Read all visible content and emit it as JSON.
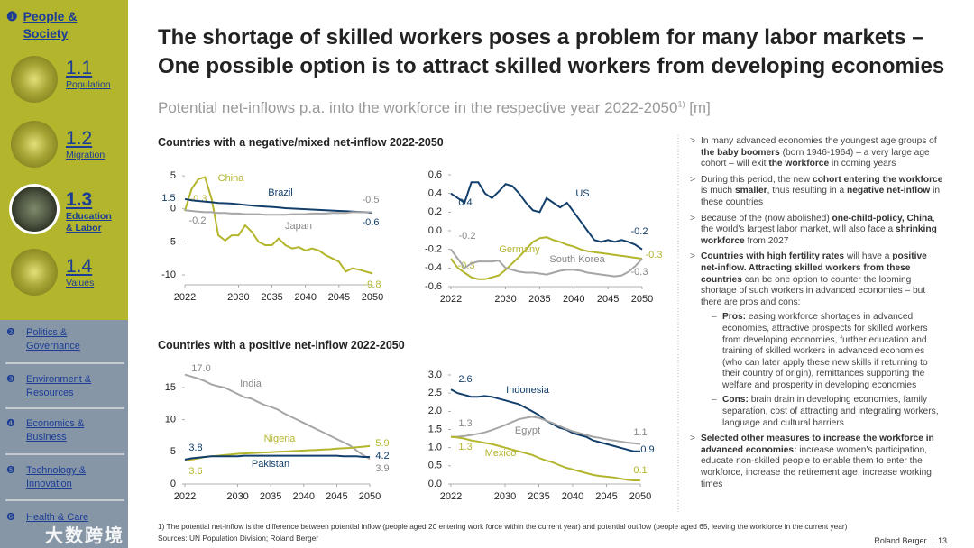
{
  "sidebar": {
    "active": {
      "num": "❶",
      "label": "People & Society"
    },
    "subitems": [
      {
        "num": "1.1",
        "label": "Population"
      },
      {
        "num": "1.2",
        "label": "Migration"
      },
      {
        "num": "1.3",
        "label": "Education & Labor"
      },
      {
        "num": "1.4",
        "label": "Values"
      }
    ],
    "sections": [
      {
        "num": "❷",
        "label": "Politics & Governance"
      },
      {
        "num": "❸",
        "label": "Environment & Resources"
      },
      {
        "num": "❹",
        "label": "Economics & Business"
      },
      {
        "num": "❺",
        "label": "Technology & Innovation"
      },
      {
        "num": "❻",
        "label": "Health & Care"
      }
    ],
    "watermark": "大数跨境"
  },
  "title": [
    "The shortage of skilled workers poses a problem for many labor markets –",
    "One possible option is to attract skilled workers from developing economies"
  ],
  "subtitle": {
    "text": "Potential net-inflows p.a. into the workforce in the respective year 2022-2050",
    "sup": "1)",
    "unit": "[m]"
  },
  "section_titles": [
    "Countries with a negative/mixed net-inflow 2022-2050",
    "Countries with a positive net-inflow 2022-2050"
  ],
  "chart_data": [
    {
      "type": "line",
      "x": [
        2022,
        2023,
        2024,
        2025,
        2026,
        2027,
        2028,
        2029,
        2030,
        2031,
        2032,
        2033,
        2034,
        2035,
        2036,
        2037,
        2038,
        2039,
        2040,
        2041,
        2042,
        2043,
        2044,
        2045,
        2046,
        2047,
        2048,
        2049,
        2050
      ],
      "xlim": [
        2022,
        2050
      ],
      "xticks": [
        2022,
        2030,
        2035,
        2040,
        2045,
        2050
      ],
      "ylim": [
        -11.5,
        5.7
      ],
      "yticks": [
        5,
        0,
        -5,
        -10
      ],
      "series": [
        {
          "name": "China",
          "color": "#b3b52c",
          "values": [
            -0.3,
            3,
            4.5,
            4.8,
            1.5,
            -4,
            -4.8,
            -4,
            -4,
            -2.5,
            -3.5,
            -5,
            -5.5,
            -5.5,
            -4.5,
            -5.5,
            -6,
            -5.8,
            -6.3,
            -6,
            -6.3,
            -7,
            -7.5,
            -8,
            -9.5,
            -9,
            -9.2,
            -9.5,
            -9.8
          ]
        },
        {
          "name": "Brazil",
          "color": "#123f6b",
          "values": [
            1.5,
            1.3,
            1.2,
            1.1,
            1.0,
            0.9,
            0.85,
            0.8,
            0.7,
            0.6,
            0.5,
            0.4,
            0.35,
            0.3,
            0.2,
            0.1,
            0.05,
            0,
            -0.05,
            -0.1,
            -0.15,
            -0.2,
            -0.25,
            -0.3,
            -0.35,
            -0.4,
            -0.45,
            -0.5,
            -0.6
          ]
        },
        {
          "name": "Japan",
          "color": "#a6a6a6",
          "values": [
            -0.2,
            -0.3,
            -0.4,
            -0.5,
            -0.5,
            -0.6,
            -0.6,
            -0.7,
            -0.7,
            -0.8,
            -0.8,
            -0.8,
            -0.9,
            -0.9,
            -0.9,
            -0.9,
            -0.8,
            -0.8,
            -0.8,
            -0.7,
            -0.7,
            -0.7,
            -0.6,
            -0.6,
            -0.6,
            -0.5,
            -0.5,
            -0.5,
            -0.5
          ]
        }
      ]
    },
    {
      "type": "line",
      "x": [
        2022,
        2023,
        2024,
        2025,
        2026,
        2027,
        2028,
        2029,
        2030,
        2031,
        2032,
        2033,
        2034,
        2035,
        2036,
        2037,
        2038,
        2039,
        2040,
        2041,
        2042,
        2043,
        2044,
        2045,
        2046,
        2047,
        2048,
        2049,
        2050
      ],
      "xlim": [
        2022,
        2050
      ],
      "xticks": [
        2022,
        2030,
        2035,
        2040,
        2045,
        2050
      ],
      "ylim": [
        -0.6,
        0.6
      ],
      "yticks": [
        0.6,
        0.4,
        0.2,
        {
          "value": 0,
          "label": "0.0"
        },
        -0.2,
        -0.4,
        -0.6
      ],
      "series": [
        {
          "name": "US",
          "color": "#123f6b",
          "values": [
            0.4,
            0.35,
            0.3,
            0.52,
            0.52,
            0.4,
            0.35,
            0.42,
            0.5,
            0.48,
            0.4,
            0.3,
            0.22,
            0.2,
            0.35,
            0.3,
            0.25,
            0.3,
            0.2,
            0.1,
            0.0,
            -0.1,
            -0.12,
            -0.1,
            -0.12,
            -0.1,
            -0.12,
            -0.15,
            -0.2
          ]
        },
        {
          "name": "Germany",
          "color": "#b3b52c",
          "values": [
            -0.3,
            -0.4,
            -0.45,
            -0.5,
            -0.52,
            -0.52,
            -0.5,
            -0.48,
            -0.42,
            -0.35,
            -0.28,
            -0.2,
            -0.12,
            -0.08,
            -0.07,
            -0.1,
            -0.12,
            -0.15,
            -0.17,
            -0.2,
            -0.22,
            -0.23,
            -0.24,
            -0.25,
            -0.26,
            -0.27,
            -0.28,
            -0.29,
            -0.3
          ]
        },
        {
          "name": "South Korea",
          "color": "#a6a6a6",
          "values": [
            -0.2,
            -0.3,
            -0.4,
            -0.35,
            -0.33,
            -0.33,
            -0.33,
            -0.32,
            -0.4,
            -0.42,
            -0.44,
            -0.45,
            -0.45,
            -0.46,
            -0.47,
            -0.45,
            -0.43,
            -0.42,
            -0.42,
            -0.43,
            -0.45,
            -0.46,
            -0.47,
            -0.48,
            -0.49,
            -0.48,
            -0.44,
            -0.38,
            -0.3
          ]
        }
      ]
    },
    {
      "type": "line",
      "x": [
        2022,
        2023,
        2024,
        2025,
        2026,
        2027,
        2028,
        2029,
        2030,
        2031,
        2032,
        2033,
        2034,
        2035,
        2036,
        2037,
        2038,
        2039,
        2040,
        2041,
        2042,
        2043,
        2044,
        2045,
        2046,
        2047,
        2048,
        2049,
        2050
      ],
      "xlim": [
        2022,
        2050
      ],
      "xticks": [
        2022,
        2030,
        2035,
        2040,
        2045,
        2050
      ],
      "ylim": [
        0,
        18.5
      ],
      "yticks": [
        15,
        10,
        5,
        0
      ],
      "series": [
        {
          "name": "India",
          "color": "#a6a6a6",
          "values": [
            17,
            16.7,
            16.4,
            16,
            15.5,
            15.2,
            15,
            14.5,
            14,
            13.5,
            13.3,
            12.8,
            12.3,
            12,
            11.6,
            11,
            10.5,
            10,
            9.5,
            9,
            8.5,
            8,
            7.5,
            7,
            6.5,
            6,
            5.2,
            4.5,
            3.9
          ],
          "value_labels": [
            "17.0",
            null,
            null,
            null,
            null,
            null,
            null,
            null,
            null,
            null,
            null,
            null,
            null,
            null,
            null,
            null,
            null,
            null,
            null,
            null,
            null,
            null,
            null,
            null,
            null,
            null,
            null,
            null,
            null
          ]
        },
        {
          "name": "Nigeria",
          "color": "#b3b52c",
          "values": [
            3.6,
            3.8,
            4.0,
            4.2,
            4.3,
            4.4,
            4.5,
            4.6,
            4.7,
            4.75,
            4.8,
            4.85,
            4.9,
            4.95,
            5.0,
            5.05,
            5.1,
            5.15,
            5.2,
            5.25,
            5.3,
            5.35,
            5.4,
            5.5,
            5.55,
            5.6,
            5.7,
            5.8,
            5.9
          ]
        },
        {
          "name": "Pakistan",
          "color": "#123f6b",
          "values": [
            3.8,
            4.0,
            4.1,
            4.2,
            4.3,
            4.3,
            4.3,
            4.3,
            4.3,
            4.4,
            4.4,
            4.4,
            4.4,
            4.4,
            4.4,
            4.4,
            4.4,
            4.4,
            4.4,
            4.4,
            4.4,
            4.4,
            4.4,
            4.4,
            4.3,
            4.3,
            4.3,
            4.2,
            4.2
          ]
        }
      ]
    },
    {
      "type": "line",
      "x": [
        2022,
        2023,
        2024,
        2025,
        2026,
        2027,
        2028,
        2029,
        2030,
        2031,
        2032,
        2033,
        2034,
        2035,
        2036,
        2037,
        2038,
        2039,
        2040,
        2041,
        2042,
        2043,
        2044,
        2045,
        2046,
        2047,
        2048,
        2049,
        2050
      ],
      "xlim": [
        2022,
        2050
      ],
      "xticks": [
        2022,
        2030,
        2035,
        2040,
        2045,
        2050
      ],
      "ylim": [
        0,
        3
      ],
      "yticks": [
        {
          "value": 3,
          "label": "3.0"
        },
        2.5,
        {
          "value": 2,
          "label": "2.0"
        },
        1.5,
        {
          "value": 1,
          "label": "1.0"
        },
        0.5,
        {
          "value": 0,
          "label": "0.0"
        }
      ],
      "series": [
        {
          "name": "Indonesia",
          "color": "#123f6b",
          "values": [
            2.6,
            2.5,
            2.45,
            2.4,
            2.4,
            2.42,
            2.4,
            2.35,
            2.3,
            2.25,
            2.2,
            2.1,
            2.0,
            1.9,
            1.75,
            1.65,
            1.55,
            1.5,
            1.4,
            1.35,
            1.3,
            1.2,
            1.15,
            1.1,
            1.05,
            1.0,
            0.95,
            0.9,
            0.9
          ]
        },
        {
          "name": "Egypt",
          "color": "#a6a6a6",
          "values": [
            1.3,
            1.3,
            1.32,
            1.35,
            1.38,
            1.42,
            1.48,
            1.55,
            1.62,
            1.7,
            1.78,
            1.82,
            1.85,
            1.82,
            1.75,
            1.68,
            1.6,
            1.52,
            1.45,
            1.4,
            1.35,
            1.3,
            1.27,
            1.23,
            1.2,
            1.17,
            1.14,
            1.12,
            1.1
          ]
        },
        {
          "name": "Mexico",
          "color": "#b3b52c",
          "values": [
            1.3,
            1.28,
            1.25,
            1.2,
            1.17,
            1.13,
            1.1,
            1.05,
            1.0,
            0.95,
            0.9,
            0.85,
            0.8,
            0.72,
            0.65,
            0.6,
            0.52,
            0.45,
            0.4,
            0.35,
            0.3,
            0.25,
            0.22,
            0.2,
            0.18,
            0.15,
            0.12,
            0.1,
            0.1
          ]
        }
      ]
    }
  ],
  "bullets": [
    {
      "marker": ">",
      "runs": [
        {
          "text": "In many advanced economies the youngest age groups of "
        },
        {
          "text": "the baby boomers",
          "b": true
        },
        {
          "text": " (born 1946-1964) – a very large age cohort – will exit "
        },
        {
          "text": "the workforce",
          "b": true
        },
        {
          "text": " in coming years"
        }
      ]
    },
    {
      "marker": ">",
      "runs": [
        {
          "text": "During this period, the new "
        },
        {
          "text": "cohort entering the workforce",
          "b": true
        },
        {
          "text": " is much "
        },
        {
          "text": "smaller",
          "b": true
        },
        {
          "text": ", thus resulting in a "
        },
        {
          "text": "negative net-inflow",
          "b": true
        },
        {
          "text": " in these countries"
        }
      ]
    },
    {
      "marker": ">",
      "runs": [
        {
          "text": "Because of the (now abolished) "
        },
        {
          "text": "one-child-policy, China",
          "b": true
        },
        {
          "text": ", the world's largest labor market, will also face a "
        },
        {
          "text": "shrinking workforce",
          "b": true
        },
        {
          "text": " from 2027"
        }
      ]
    },
    {
      "marker": ">",
      "runs": [
        {
          "text": "Countries with high fertility rates",
          "b": true
        },
        {
          "text": " will have a "
        },
        {
          "text": "positive net-inflow. Attracting skilled workers from these countries",
          "b": true
        },
        {
          "text": " can be one option to counter the looming shortage of such workers in advanced economies – but there are pros and cons:"
        }
      ],
      "subs": [
        {
          "marker": "–",
          "runs": [
            {
              "text": "Pros:",
              "b": true
            },
            {
              "text": " easing workforce shortages in advanced economies, attractive prospects for skilled workers from developing economies, further education and training of skilled workers in advanced economies (who can later apply these new skills if returning to their country of origin), remittances supporting the welfare and prosperity in developing economies"
            }
          ]
        },
        {
          "marker": "–",
          "runs": [
            {
              "text": "Cons:",
              "b": true
            },
            {
              "text": " brain drain in developing economies, family separation, cost of attracting and integrating workers, language and cultural barriers"
            }
          ]
        }
      ]
    },
    {
      "marker": ">",
      "runs": [
        {
          "text": "Selected other measures to increase the workforce in advanced economies:",
          "b": true
        },
        {
          "text": " increase women's participation, educate non-skilled people to enable them to enter the workforce, increase the retirement age, increase working times"
        }
      ]
    }
  ],
  "footnote": "1) The potential net-inflow is the difference between potential inflow (people aged 20 entering work force within the current year) and potential outflow (people aged 65, leaving the workforce in the current year)",
  "sources": "Sources: UN Population Division; Roland Berger",
  "footer": {
    "brand": "Roland Berger",
    "page": "13"
  }
}
